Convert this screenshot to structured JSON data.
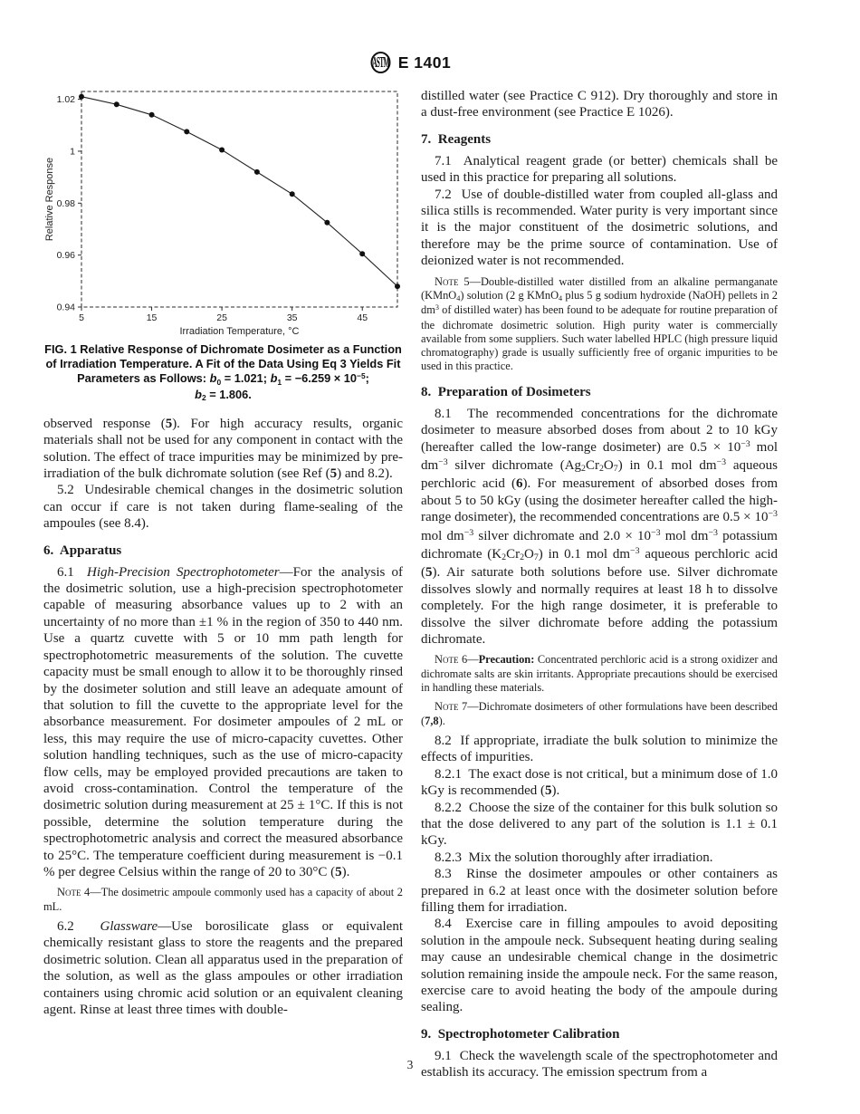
{
  "page": {
    "number": "3"
  },
  "header": {
    "designation": "E 1401",
    "logo": "astm-logo"
  },
  "chart_data": {
    "type": "line",
    "title": "",
    "xlabel": "Irradiation Temperature, °C",
    "ylabel": "Relative Response",
    "xlim": [
      5,
      50
    ],
    "ylim": [
      0.94,
      1.023
    ],
    "x_ticks": [
      5,
      15,
      25,
      35,
      45
    ],
    "x_tick_labels": [
      "5",
      "15",
      "25",
      "35",
      "45"
    ],
    "y_ticks": [
      0.94,
      0.96,
      0.98,
      1,
      1.02
    ],
    "y_tick_labels": [
      "0.94",
      "0.96",
      "0.98",
      "1",
      "1.02"
    ],
    "grid": false,
    "legend_position": "none",
    "marker": "filled-circle",
    "line_color": "#222222",
    "series": [
      {
        "name": "relative response of dichromate dosimeter",
        "x": [
          5,
          10,
          15,
          20,
          25,
          30,
          35,
          40,
          45,
          50
        ],
        "y": [
          1.021,
          1.018,
          1.014,
          1.0075,
          1.0005,
          0.992,
          0.9835,
          0.9725,
          0.9605,
          0.948
        ]
      }
    ],
    "fit": {
      "equation": "Eq 3",
      "b0": 1.021,
      "b1": -6.259e-05,
      "b2": 1.806
    }
  },
  "figure": {
    "caption_lines": [
      "FIG. 1 Relative Response of Dichromate Dosimeter as a Function",
      "of Irradiation Temperature. A Fit of the Data Using Eq 3 Yields Fit",
      "Parameters as Follows: <i>b</i><sub>0</sub> = 1.021; <i>b</i><sub>1</sub> = −6.259 × 10<sup>−5</sup>;",
      "<i>b</i><sub>2</sub> = 1.806."
    ]
  },
  "columns": {
    "left": {
      "blocks": [
        {
          "kind": "paragraph-continuation",
          "html": "observed response (<b>5</b>). For high accuracy results, organic materials shall not be used for any component in contact with the solution. The effect of trace impurities may be minimized by pre-irradiation of the bulk dichromate solution (see Ref (<b>5</b>) and 8.2)."
        },
        {
          "kind": "paragraph",
          "html": "5.2&nbsp; Undesirable chemical changes in the dosimetric solution can occur if care is not taken during flame-sealing of the ampoules (see 8.4)."
        },
        {
          "kind": "heading",
          "html": "6.&nbsp; Apparatus"
        },
        {
          "kind": "paragraph",
          "html": "6.1&nbsp; <i>High-Precision Spectrophotometer</i>—For the analysis of the dosimetric solution, use a high-precision spectrophotometer capable of measuring absorbance values up to 2 with an uncertainty of no more than ±1 % in the region of 350 to 440 nm. Use a quartz cuvette with 5 or 10 mm path length for spectrophotometric measurements of the solution. The cuvette capacity must be small enough to allow it to be thoroughly rinsed by the dosimeter solution and still leave an adequate amount of that solution to fill the cuvette to the appropriate level for the absorbance measurement. For dosimeter ampoules of 2 mL or less, this may require the use of micro-capacity cuvettes. Other solution handling techniques, such as the use of micro-capacity flow cells, may be employed provided precautions are taken to avoid cross-contamination. Control the temperature of the dosimetric solution during measurement at 25 ± 1°C. If this is not possible, determine the solution temperature during the spectrophotometric analysis and correct the measured absorbance to 25°C. The temperature coefficient during measurement is −0.1 % per degree Celsius within the range of 20 to 30°C (<b>5</b>)."
        },
        {
          "kind": "note",
          "html": "<span class=\"sc\">Note</span> 4—The dosimetric ampoule commonly used has a capacity of about 2 mL."
        },
        {
          "kind": "paragraph",
          "html": "6.2&nbsp; <i>Glassware</i>—Use borosilicate glass or equivalent chemically resistant glass to store the reagents and the prepared dosimetric solution. Clean all apparatus used in the preparation of the solution, as well as the glass ampoules or other irradiation containers using chromic acid solution or an equivalent cleaning agent. Rinse at least three times with double-"
        }
      ]
    },
    "right": {
      "blocks": [
        {
          "kind": "paragraph-continuation",
          "html": "distilled water (see Practice C 912). Dry thoroughly and store in a dust-free environment (see Practice E 1026)."
        },
        {
          "kind": "heading",
          "html": "7.&nbsp; Reagents"
        },
        {
          "kind": "paragraph",
          "html": "7.1&nbsp; Analytical reagent grade (or better) chemicals shall be used in this practice for preparing all solutions."
        },
        {
          "kind": "paragraph",
          "html": "7.2&nbsp; Use of double-distilled water from coupled all-glass and silica stills is recommended. Water purity is very important since it is the major constituent of the dosimetric solutions, and therefore may be the prime source of contamination. Use of deionized water is not recommended."
        },
        {
          "kind": "note",
          "html": "<span class=\"sc\">Note</span> 5—Double-distilled water distilled from an alkaline permanganate (KMnO<sub>4</sub>) solution (2 g KMnO<sub>4</sub> plus 5 g sodium hydroxide (NaOH) pellets in 2 dm<sup>3</sup> of distilled water) has been found to be adequate for routine preparation of the dichromate dosimetric solution. High purity water is commercially available from some suppliers. Such water labelled HPLC (high pressure liquid chromatography) grade is usually sufficiently free of organic impurities to be used in this practice."
        },
        {
          "kind": "heading",
          "html": "8.&nbsp; Preparation of Dosimeters"
        },
        {
          "kind": "paragraph",
          "html": "8.1&nbsp; The recommended concentrations for the dichromate dosimeter to measure absorbed doses from about 2 to 10 kGy (hereafter called the low-range dosimeter) are 0.5 × 10<sup>−3</sup> mol dm<sup>−3</sup> silver dichromate (Ag<sub>2</sub>Cr<sub>2</sub>O<sub>7</sub>) in 0.1 mol dm<sup>−3</sup> aqueous perchloric acid (<b>6</b>). For measurement of absorbed doses from about 5 to 50 kGy (using the dosimeter hereafter called the high-range dosimeter), the recommended concentrations are 0.5 × 10<sup>−3</sup> mol dm<sup>−3</sup> silver dichromate and 2.0 × 10<sup>−3</sup> mol dm<sup>−3</sup> potassium dichromate (K<sub>2</sub>Cr<sub>2</sub>O<sub>7</sub>) in 0.1 mol dm<sup>−3</sup> aqueous perchloric acid (<b>5</b>). Air saturate both solutions before use. Silver dichromate dissolves slowly and normally requires at least 18 h to dissolve completely. For the high range dosimeter, it is preferable to dissolve the silver dichromate before adding the potassium dichromate."
        },
        {
          "kind": "note",
          "html": "<span class=\"sc\">Note</span> 6—<b>Precaution:</b> Concentrated perchloric acid is a strong oxidizer and dichromate salts are skin irritants. Appropriate precautions should be exercised in handling these materials."
        },
        {
          "kind": "note",
          "html": "<span class=\"sc\">Note</span> 7—Dichromate dosimeters of other formulations have been described (<b>7,8</b>)."
        },
        {
          "kind": "paragraph",
          "html": "8.2&nbsp; If appropriate, irradiate the bulk solution to minimize the effects of impurities."
        },
        {
          "kind": "paragraph",
          "html": "8.2.1&nbsp; The exact dose is not critical, but a minimum dose of 1.0 kGy is recommended (<b>5</b>)."
        },
        {
          "kind": "paragraph",
          "html": "8.2.2&nbsp; Choose the size of the container for this bulk solution so that the dose delivered to any part of the solution is 1.1 ± 0.1 kGy."
        },
        {
          "kind": "paragraph",
          "html": "8.2.3&nbsp; Mix the solution thoroughly after irradiation."
        },
        {
          "kind": "paragraph",
          "html": "8.3&nbsp; Rinse the dosimeter ampoules or other containers as prepared in 6.2 at least once with the dosimeter solution before filling them for irradiation."
        },
        {
          "kind": "paragraph",
          "html": "8.4&nbsp; Exercise care in filling ampoules to avoid depositing solution in the ampoule neck. Subsequent heating during sealing may cause an undesirable chemical change in the dosimetric solution remaining inside the ampoule neck. For the same reason, exercise care to avoid heating the body of the ampoule during sealing."
        },
        {
          "kind": "heading",
          "html": "9.&nbsp; Spectrophotometer Calibration"
        },
        {
          "kind": "paragraph",
          "html": "9.1&nbsp; Check the wavelength scale of the spectrophotometer and establish its accuracy. The emission spectrum from a"
        }
      ]
    }
  }
}
